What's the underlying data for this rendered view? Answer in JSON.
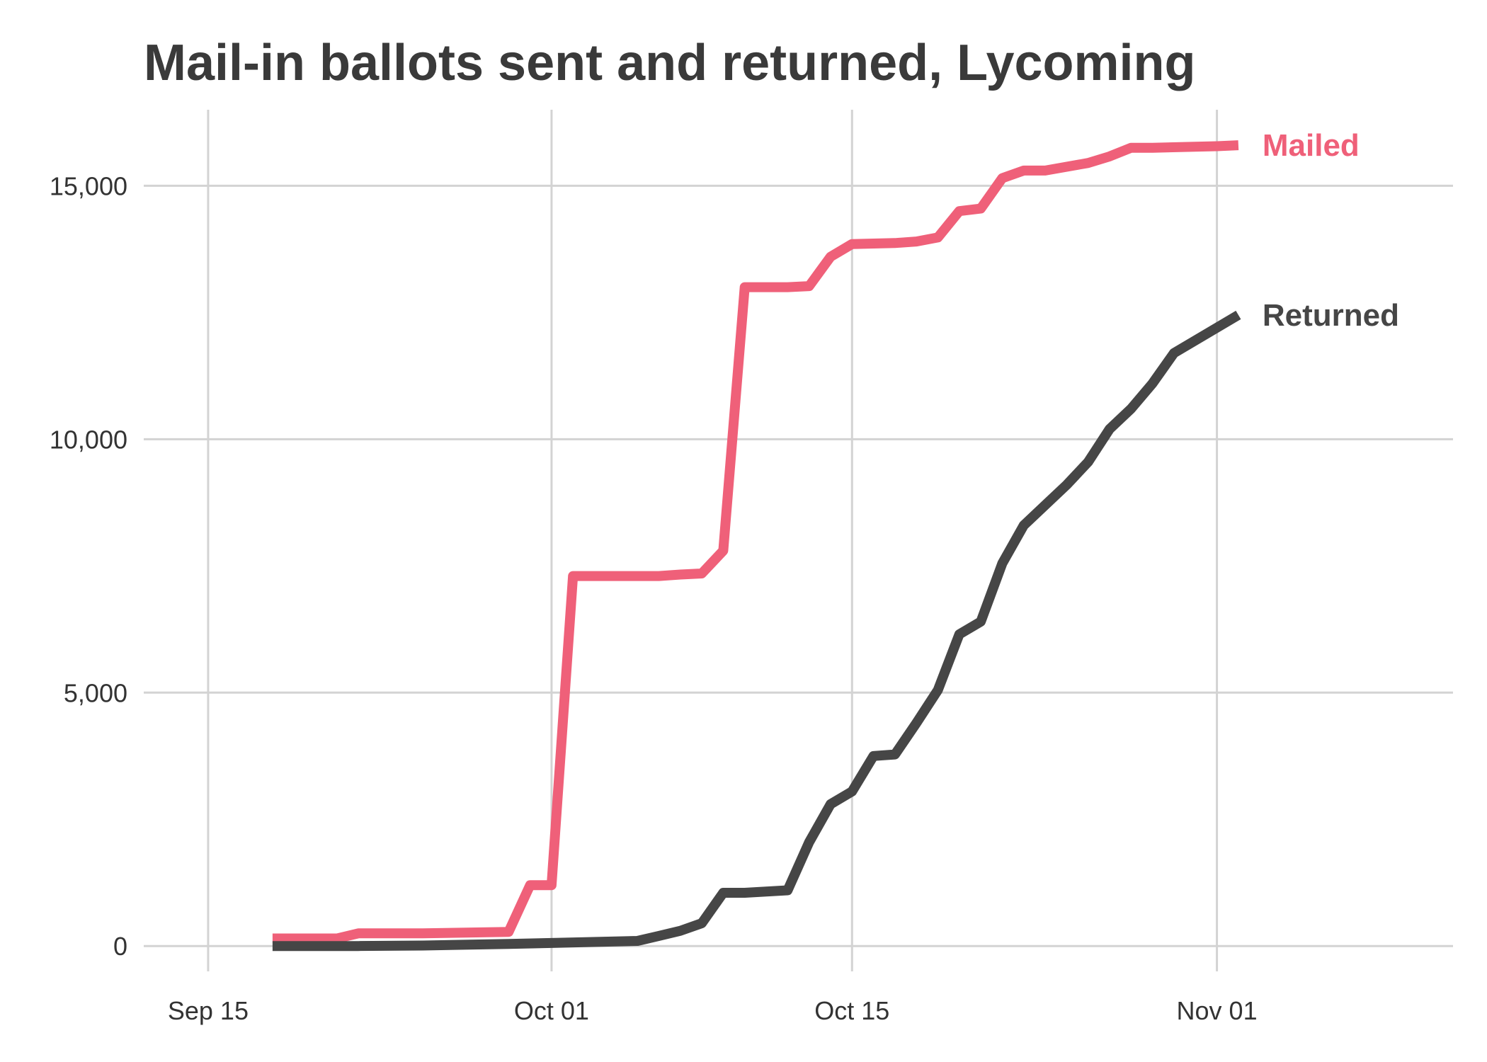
{
  "chart_data": {
    "type": "line",
    "title": "Mail-in ballots sent and returned, Lycoming",
    "xlabel": "",
    "ylabel": "",
    "x_type": "date",
    "xlim": [
      "2020-09-12",
      "2020-11-12"
    ],
    "ylim": [
      -500,
      16500
    ],
    "x_ticks": [
      {
        "date": "2020-09-15",
        "label": "Sep 15"
      },
      {
        "date": "2020-10-01",
        "label": "Oct 01"
      },
      {
        "date": "2020-10-15",
        "label": "Oct 15"
      },
      {
        "date": "2020-11-01",
        "label": "Nov 01"
      }
    ],
    "y_ticks": [
      {
        "value": 0,
        "label": "0"
      },
      {
        "value": 5000,
        "label": "5,000"
      },
      {
        "value": 10000,
        "label": "10,000"
      },
      {
        "value": 15000,
        "label": "15,000"
      }
    ],
    "grid": true,
    "legend": "direct labels at line ends",
    "series": [
      {
        "name": "Mailed",
        "color": "#ef6079",
        "points": [
          [
            "2020-09-18",
            150
          ],
          [
            "2020-09-21",
            150
          ],
          [
            "2020-09-22",
            250
          ],
          [
            "2020-09-25",
            250
          ],
          [
            "2020-09-29",
            280
          ],
          [
            "2020-09-30",
            1200
          ],
          [
            "2020-10-01",
            1200
          ],
          [
            "2020-10-02",
            7300
          ],
          [
            "2020-10-05",
            7300
          ],
          [
            "2020-10-06",
            7300
          ],
          [
            "2020-10-07",
            7330
          ],
          [
            "2020-10-08",
            7350
          ],
          [
            "2020-10-09",
            7800
          ],
          [
            "2020-10-10",
            13000
          ],
          [
            "2020-10-12",
            13000
          ],
          [
            "2020-10-13",
            13020
          ],
          [
            "2020-10-14",
            13600
          ],
          [
            "2020-10-15",
            13850
          ],
          [
            "2020-10-17",
            13870
          ],
          [
            "2020-10-18",
            13900
          ],
          [
            "2020-10-19",
            13980
          ],
          [
            "2020-10-20",
            14500
          ],
          [
            "2020-10-21",
            14550
          ],
          [
            "2020-10-22",
            15150
          ],
          [
            "2020-10-23",
            15300
          ],
          [
            "2020-10-24",
            15300
          ],
          [
            "2020-10-26",
            15450
          ],
          [
            "2020-10-27",
            15580
          ],
          [
            "2020-10-28",
            15750
          ],
          [
            "2020-10-29",
            15750
          ],
          [
            "2020-11-01",
            15780
          ],
          [
            "2020-11-02",
            15800
          ]
        ]
      },
      {
        "name": "Returned",
        "color": "#464646",
        "points": [
          [
            "2020-09-18",
            0
          ],
          [
            "2020-09-22",
            0
          ],
          [
            "2020-09-25",
            10
          ],
          [
            "2020-09-29",
            40
          ],
          [
            "2020-10-01",
            60
          ],
          [
            "2020-10-05",
            100
          ],
          [
            "2020-10-06",
            200
          ],
          [
            "2020-10-07",
            300
          ],
          [
            "2020-10-08",
            450
          ],
          [
            "2020-10-09",
            1050
          ],
          [
            "2020-10-10",
            1050
          ],
          [
            "2020-10-12",
            1100
          ],
          [
            "2020-10-13",
            2050
          ],
          [
            "2020-10-14",
            2800
          ],
          [
            "2020-10-15",
            3050
          ],
          [
            "2020-10-16",
            3750
          ],
          [
            "2020-10-17",
            3780
          ],
          [
            "2020-10-18",
            4400
          ],
          [
            "2020-10-19",
            5050
          ],
          [
            "2020-10-20",
            6150
          ],
          [
            "2020-10-21",
            6400
          ],
          [
            "2020-10-22",
            7550
          ],
          [
            "2020-10-23",
            8300
          ],
          [
            "2020-10-24",
            8700
          ],
          [
            "2020-10-25",
            9100
          ],
          [
            "2020-10-26",
            9550
          ],
          [
            "2020-10-27",
            10200
          ],
          [
            "2020-10-28",
            10600
          ],
          [
            "2020-10-29",
            11100
          ],
          [
            "2020-10-30",
            11700
          ],
          [
            "2020-11-02",
            12450
          ]
        ]
      }
    ]
  }
}
